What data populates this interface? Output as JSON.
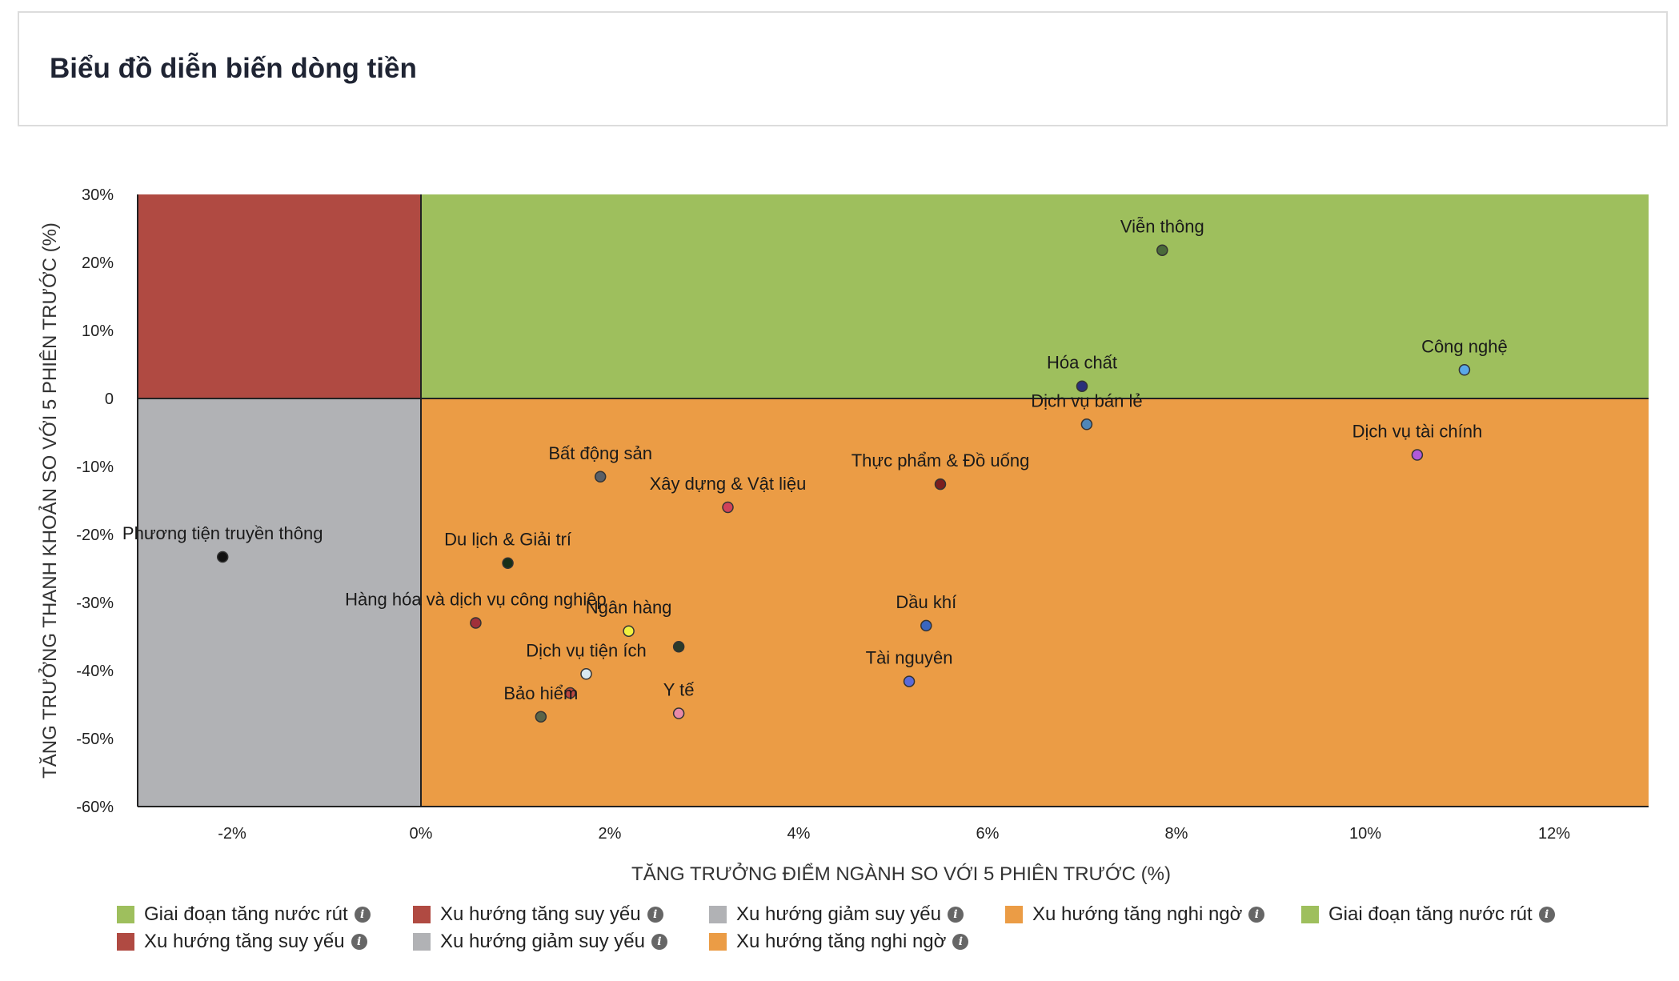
{
  "header": {
    "title": "Biểu đồ diễn biến dòng tiền"
  },
  "chart_data": {
    "type": "scatter",
    "title": "",
    "xlabel": "TĂNG TRƯỞNG ĐIỂM NGÀNH SO VỚI 5 PHIÊN TRƯỚC (%)",
    "ylabel": "TĂNG TRƯỞNG THANH KHOẢN SO VỚI 5 PHIÊN TRƯỚC (%)",
    "xlim": [
      -3,
      13
    ],
    "ylim": [
      -60,
      30
    ],
    "x_ticks": [
      -2,
      0,
      2,
      4,
      6,
      8,
      10,
      12
    ],
    "x_tick_labels": [
      "-2%",
      "0%",
      "2%",
      "4%",
      "6%",
      "8%",
      "10%",
      "12%"
    ],
    "y_ticks": [
      30,
      20,
      10,
      0,
      -10,
      -20,
      -30,
      -40,
      -50,
      -60
    ],
    "y_tick_labels": [
      "30%",
      "20%",
      "10%",
      "0",
      "-10%",
      "-20%",
      "-30%",
      "-40%",
      "-50%",
      "-60%"
    ],
    "quadrants": [
      {
        "name": "Giai đoạn tăng nước rút",
        "color": "#9ebf5d",
        "x": [
          0,
          13
        ],
        "y": [
          0,
          30
        ]
      },
      {
        "name": "Xu hướng tăng suy yếu",
        "color": "#b04a42",
        "x": [
          -3,
          0
        ],
        "y": [
          0,
          30
        ]
      },
      {
        "name": "Xu hướng giảm suy yếu",
        "color": "#b1b2b5",
        "x": [
          -3,
          0
        ],
        "y": [
          -60,
          0
        ]
      },
      {
        "name": "Xu hướng tăng nghi ngờ",
        "color": "#eb9c45",
        "x": [
          0,
          13
        ],
        "y": [
          -60,
          0
        ]
      }
    ],
    "points": [
      {
        "name": "Viễn thông",
        "x": 7.85,
        "y": 21.8,
        "color": "#4a6a3a"
      },
      {
        "name": "Hóa chất",
        "x": 7.0,
        "y": 1.8,
        "color": "#2a2f7a"
      },
      {
        "name": "Công nghệ",
        "x": 11.05,
        "y": 4.2,
        "color": "#5aa8e8"
      },
      {
        "name": "Dịch vụ bán lẻ",
        "x": 7.05,
        "y": -3.8,
        "color": "#4f87b8"
      },
      {
        "name": "Dịch vụ tài chính",
        "x": 10.55,
        "y": -8.3,
        "color": "#b05ad8"
      },
      {
        "name": "Thực phẩm & Đồ uống",
        "x": 5.5,
        "y": -12.6,
        "color": "#7a1f1f"
      },
      {
        "name": "Bất động sản",
        "x": 1.9,
        "y": -11.5,
        "color": "#5a5f66"
      },
      {
        "name": "Xây dựng & Vật liệu",
        "x": 3.25,
        "y": -16.0,
        "color": "#d0425a"
      },
      {
        "name": "Phương tiện truyền thông",
        "x": -2.1,
        "y": -23.3,
        "color": "#111111"
      },
      {
        "name": "Du lịch & Giải trí",
        "x": 0.92,
        "y": -24.2,
        "color": "#183018"
      },
      {
        "name": "Hàng hóa và dịch vụ công nghiệp",
        "x": 0.58,
        "y": -33.0,
        "color": "#a0303a"
      },
      {
        "name": "Ngân hàng",
        "x": 2.2,
        "y": -34.2,
        "color": "#f0f040"
      },
      {
        "name": "",
        "x": 2.73,
        "y": -36.5,
        "color": "#2a3a2a"
      },
      {
        "name": "Dầu khí",
        "x": 5.35,
        "y": -33.4,
        "color": "#3a66c0"
      },
      {
        "name": "Tài nguyên",
        "x": 5.17,
        "y": -41.6,
        "color": "#5a6ad8"
      },
      {
        "name": "Dịch vụ tiện ích",
        "x": 1.75,
        "y": -40.5,
        "color": "#d8e8f0"
      },
      {
        "name": "",
        "x": 1.58,
        "y": -43.3,
        "color": "#c04a40"
      },
      {
        "name": "Bảo hiểm",
        "x": 1.27,
        "y": -46.8,
        "color": "#5a6448"
      },
      {
        "name": "Y tế",
        "x": 2.73,
        "y": -46.3,
        "color": "#e88aa8"
      }
    ],
    "legend_position": "bottom",
    "grid": false
  },
  "legend": [
    {
      "label": "Giai đoạn tăng nước rút",
      "color": "#9ebf5d"
    },
    {
      "label": "Xu hướng tăng suy yếu",
      "color": "#b04a42"
    },
    {
      "label": "Xu hướng giảm suy yếu",
      "color": "#b1b2b5"
    },
    {
      "label": "Xu hướng tăng nghi ngờ",
      "color": "#eb9c45"
    },
    {
      "label": "Giai đoạn tăng nước rút",
      "color": "#9ebf5d"
    },
    {
      "label": "Xu hướng tăng suy yếu",
      "color": "#b04a42"
    },
    {
      "label": "Xu hướng giảm suy yếu",
      "color": "#b1b2b5"
    },
    {
      "label": "Xu hướng tăng nghi ngờ",
      "color": "#eb9c45"
    }
  ],
  "info_icon_glyph": "i"
}
